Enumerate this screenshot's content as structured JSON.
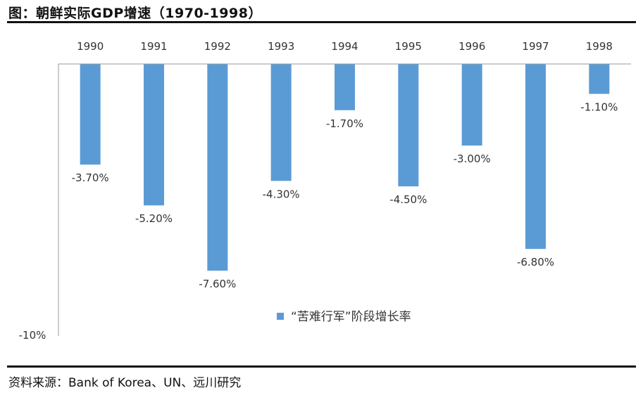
{
  "header": {
    "title": "图：朝鲜实际GDP增速（1970-1998）"
  },
  "footer": {
    "source": "资料来源：Bank of Korea、UN、远川研究"
  },
  "chart_data": {
    "type": "bar",
    "title": "图：朝鲜实际GDP增速（1970-1998）",
    "categories": [
      "1990",
      "1991",
      "1992",
      "1993",
      "1994",
      "1995",
      "1996",
      "1997",
      "1998"
    ],
    "series": [
      {
        "name": "“苦难行军”阶段增长率",
        "values": [
          -3.7,
          -5.2,
          -7.6,
          -4.3,
          -1.7,
          -4.5,
          -3.0,
          -6.8,
          -1.1
        ],
        "labels": [
          "-3.70%",
          "-5.20%",
          "-7.60%",
          "-4.30%",
          "-1.70%",
          "-4.50%",
          "-3.00%",
          "-6.80%",
          "-1.10%"
        ]
      }
    ],
    "ylim": [
      -10,
      0
    ],
    "ytick_labels": [
      "-10%"
    ],
    "xlabel": "",
    "ylabel": "",
    "x_axis_position": "top",
    "legend": "center",
    "grid": false,
    "colors": {
      "bar": "#5B9BD5",
      "axis": "#999999"
    }
  }
}
